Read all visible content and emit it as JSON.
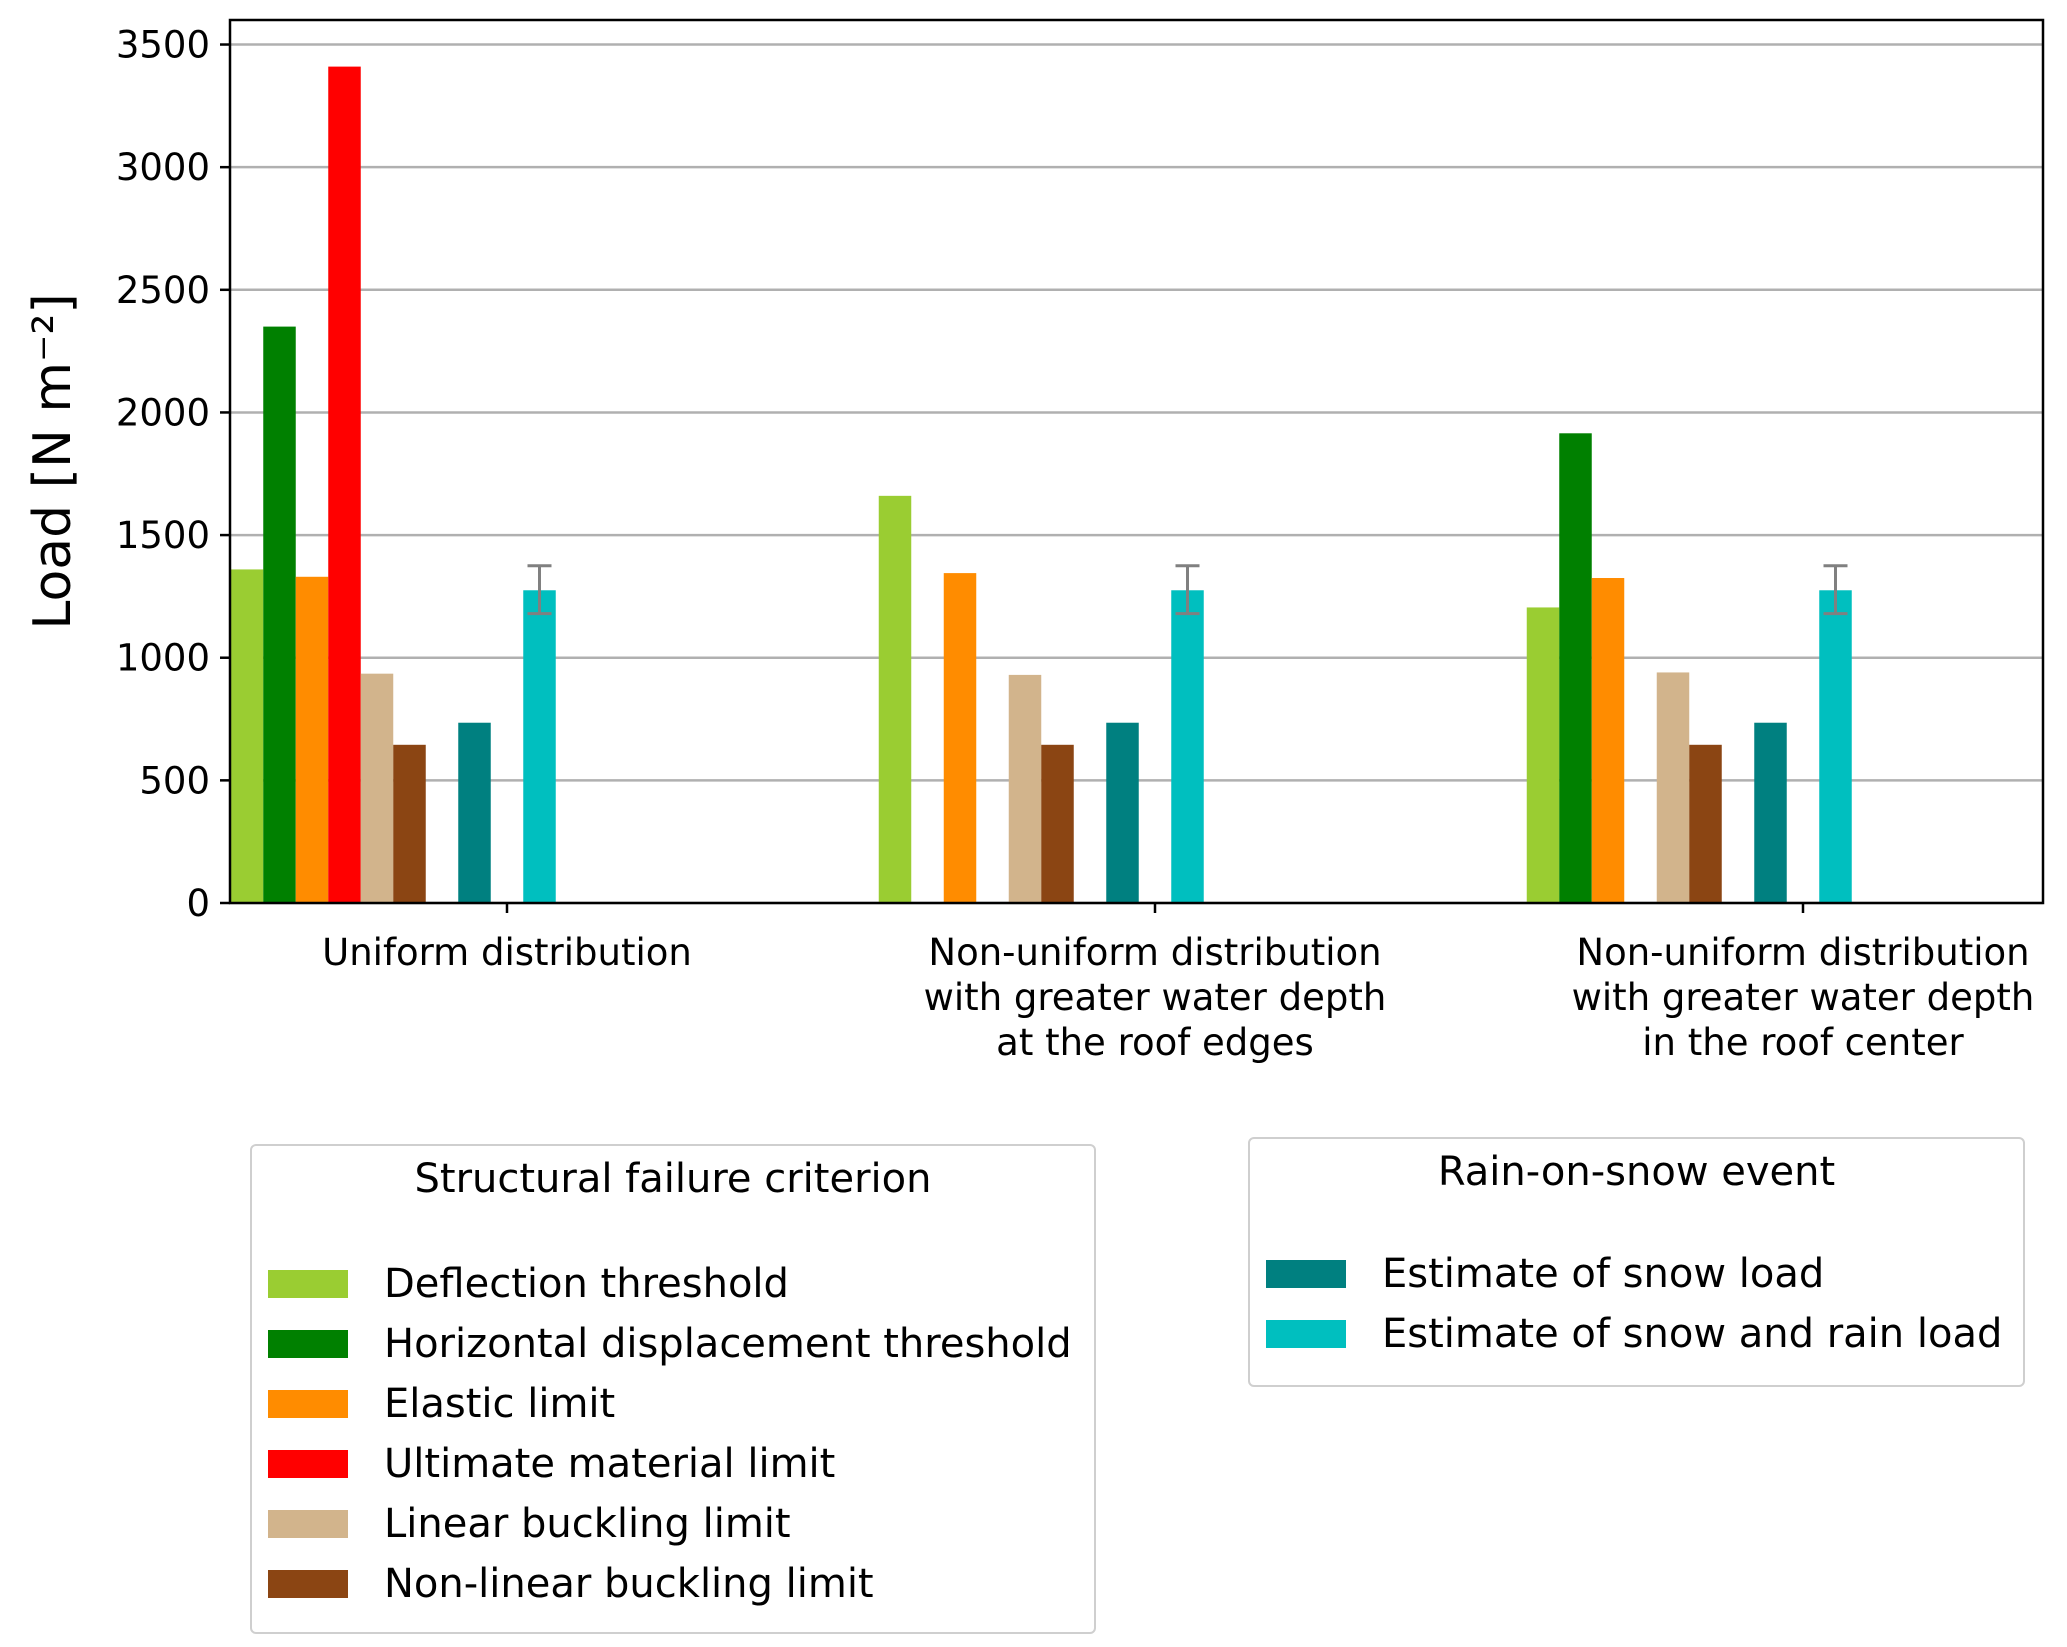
{
  "chart_data": {
    "type": "bar",
    "ylabel": "Load [N m⁻²]",
    "ylim": [
      0,
      3600
    ],
    "yticks": [
      0,
      500,
      1000,
      1500,
      2000,
      2500,
      3000,
      3500
    ],
    "grid": "horizontal",
    "categories": [
      [
        "Uniform distribution"
      ],
      [
        "Non-uniform distribution",
        "with greater water depth",
        "at the roof edges"
      ],
      [
        "Non-uniform distribution",
        "with greater water depth",
        "in the roof center"
      ]
    ],
    "series": [
      {
        "name": "Deflection threshold",
        "group": "structural",
        "color": "#9acd32",
        "values": [
          1360,
          1660,
          1205
        ]
      },
      {
        "name": "Horizontal displacement threshold",
        "group": "structural",
        "color": "#008000",
        "values": [
          2350,
          null,
          1915
        ]
      },
      {
        "name": "Elastic limit",
        "group": "structural",
        "color": "#ff8c00",
        "values": [
          1330,
          1345,
          1325
        ]
      },
      {
        "name": "Ultimate material limit",
        "group": "structural",
        "color": "#ff0000",
        "values": [
          3410,
          null,
          null
        ]
      },
      {
        "name": "Linear buckling limit",
        "group": "structural",
        "color": "#d2b48c",
        "values": [
          935,
          930,
          940
        ]
      },
      {
        "name": "Non-linear buckling limit",
        "group": "structural",
        "color": "#8b4513",
        "values": [
          645,
          645,
          645
        ]
      },
      {
        "name": "Estimate of snow load",
        "group": "event",
        "color": "#008080",
        "values": [
          735,
          735,
          735
        ]
      },
      {
        "name": "Estimate of snow and rain load",
        "group": "event",
        "color": "#00bfbf",
        "values": [
          1275,
          1275,
          1275
        ],
        "error": [
          [
            1180,
            1375
          ],
          [
            1180,
            1375
          ],
          [
            1180,
            1375
          ]
        ]
      }
    ],
    "error_bar_color": "#808080"
  },
  "legends": [
    {
      "title": "Structural failure criterion",
      "items": [
        {
          "label": "Deflection threshold",
          "color": "#9acd32"
        },
        {
          "label": "Horizontal displacement threshold",
          "color": "#008000"
        },
        {
          "label": "Elastic limit",
          "color": "#ff8c00"
        },
        {
          "label": "Ultimate material limit",
          "color": "#ff0000"
        },
        {
          "label": "Linear buckling limit",
          "color": "#d2b48c"
        },
        {
          "label": "Non-linear buckling limit",
          "color": "#8b4513"
        }
      ]
    },
    {
      "title": "Rain-on-snow event",
      "items": [
        {
          "label": "Estimate of snow load",
          "color": "#008080"
        },
        {
          "label": "Estimate of snow and rain load",
          "color": "#00bfbf"
        }
      ]
    }
  ]
}
